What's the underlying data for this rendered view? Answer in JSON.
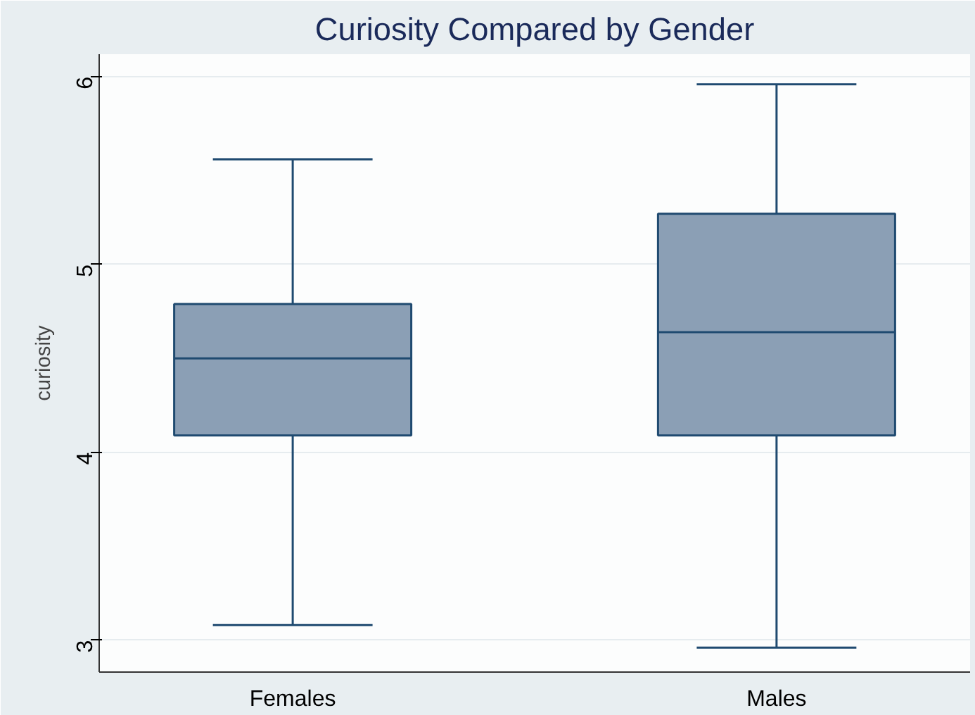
{
  "chart_data": {
    "type": "box",
    "title": "Curiosity Compared by Gender",
    "ylabel": "curiosity",
    "categories": [
      "Females",
      "Males"
    ],
    "series": [
      {
        "color": "#8b9fb5",
        "boxes": [
          {
            "low": 3.08,
            "q1": 4.09,
            "median": 4.5,
            "q3": 4.79,
            "high": 5.56
          },
          {
            "low": 2.96,
            "q1": 4.09,
            "median": 4.64,
            "q3": 5.27,
            "high": 5.96
          }
        ]
      }
    ],
    "ylim": [
      2.83,
      6.12
    ],
    "yticks": [
      3,
      4,
      5,
      6
    ],
    "grid": "y"
  }
}
